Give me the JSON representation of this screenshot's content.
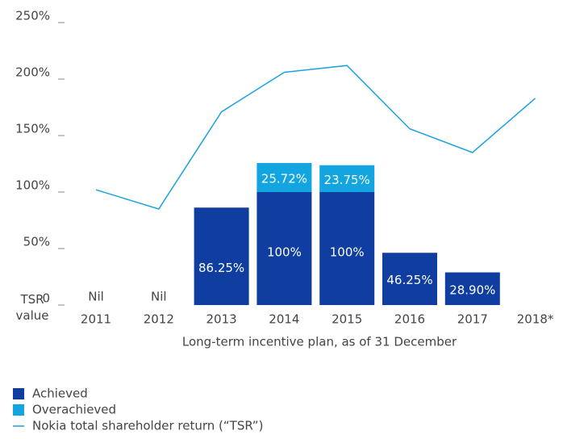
{
  "chart_data": {
    "type": "bar",
    "categories": [
      "2011",
      "2012",
      "2013",
      "2014",
      "2015",
      "2016",
      "2017",
      "2018*"
    ],
    "series": [
      {
        "name": "Achieved",
        "color": "#0f3ea0",
        "kind": "bar",
        "values": [
          0,
          0,
          86.25,
          100,
          100,
          46.25,
          28.9,
          null
        ],
        "value_labels": [
          "Nil",
          "Nil",
          "86.25%",
          "100%",
          "100%",
          "46.25%",
          "28.90%",
          null
        ]
      },
      {
        "name": "Overachieved",
        "color": "#12a5e0",
        "kind": "bar",
        "values": [
          null,
          null,
          null,
          25.72,
          23.75,
          null,
          null,
          null
        ],
        "value_labels": [
          null,
          null,
          null,
          "25.72%",
          "23.75%",
          null,
          null,
          null
        ]
      },
      {
        "name": "Nokia total shareholder return (“TSR”)",
        "color": "#1aa3e0",
        "kind": "line",
        "values": [
          102,
          85,
          171,
          206,
          212,
          156,
          135,
          183
        ]
      }
    ],
    "y_label": "TSR value",
    "x_label": "Long-term incentive plan, as of 31 December",
    "ylim": [
      0,
      250
    ],
    "yticks": [
      0,
      {
        "value": 50,
        "label": "50%"
      },
      {
        "value": 100,
        "label": "100%"
      },
      {
        "value": 150,
        "label": "150%"
      },
      {
        "value": 200,
        "label": "200%"
      },
      {
        "value": 250,
        "label": "250%"
      }
    ],
    "legend": "bottom-left"
  }
}
